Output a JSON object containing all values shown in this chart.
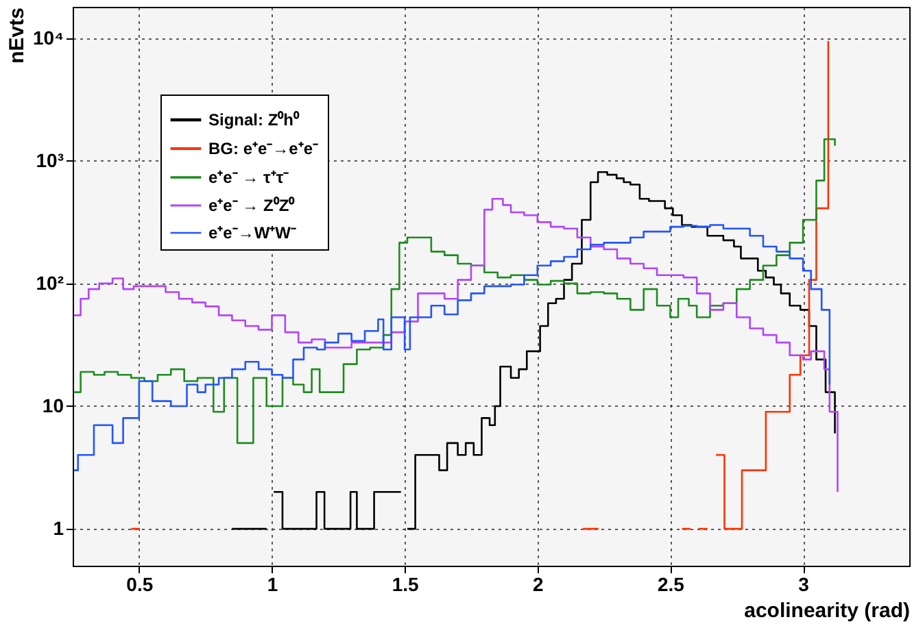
{
  "chart_data": {
    "type": "step",
    "xlabel": "acolinearity (rad)",
    "ylabel": "nEvts",
    "log": true,
    "grid": true,
    "legend": "top left",
    "xlim": [
      0.25,
      3.4
    ],
    "xticks": [
      0.5,
      1,
      1.5,
      2,
      2.5,
      3
    ],
    "ylim": [
      0.5,
      18000
    ],
    "yticks": [
      1,
      10,
      {
        "value": 100,
        "label": "10²"
      },
      {
        "value": 1000,
        "label": "10³"
      },
      {
        "value": 10000,
        "label": "10⁴"
      }
    ],
    "series": [
      {
        "name": "Signal: Z⁰h⁰",
        "color": "#000000",
        "x": [
          0.85,
          0.98,
          1.007,
          1.04,
          1.168,
          1.198,
          1.296,
          1.32,
          1.385,
          1.486,
          1.51,
          1.54,
          1.63,
          1.66,
          1.7,
          1.73,
          1.76,
          1.79,
          1.82,
          1.84,
          1.86,
          1.9,
          1.93,
          1.96,
          2.01,
          2.04,
          2.07,
          2.1,
          2.13,
          2.167,
          2.2,
          2.228,
          2.263,
          2.298,
          2.325,
          2.35,
          2.385,
          2.42,
          2.48,
          2.51,
          2.544,
          2.58,
          2.64,
          2.7,
          2.74,
          2.766,
          2.83,
          2.86,
          2.89,
          2.917,
          2.95,
          2.99,
          3.023,
          3.05,
          3.085,
          3.12
        ],
        "values": [
          1,
          null,
          2,
          1,
          2,
          1,
          2,
          1,
          2,
          null,
          1,
          4,
          3,
          5,
          4,
          5,
          4,
          8,
          7,
          10,
          21,
          17,
          20,
          28,
          45,
          69,
          75,
          107,
          145,
          330,
          670,
          810,
          770,
          720,
          670,
          640,
          490,
          470,
          410,
          360,
          300,
          290,
          245,
          225,
          200,
          160,
          127,
          112,
          98,
          83,
          66,
          61,
          45,
          24,
          13,
          6
        ]
      },
      {
        "name": "BG: e⁺e⁻→e⁺e⁻",
        "color": "#ff3300",
        "x": [
          0.47,
          0.5,
          2.17,
          2.23,
          2.544,
          2.576,
          2.606,
          2.64,
          2.672,
          2.704,
          2.77,
          2.86,
          2.95,
          2.99,
          3.023,
          3.05,
          3.095
        ],
        "values": [
          1,
          null,
          1,
          null,
          1,
          null,
          1,
          null,
          4,
          1,
          3,
          9,
          18,
          26,
          107,
          410,
          9500
        ]
      },
      {
        "name": "e⁺e⁻ → τ⁺τ⁻",
        "color": "#1e8c1e",
        "x": [
          0.255,
          0.28,
          0.33,
          0.37,
          0.42,
          0.47,
          0.52,
          0.57,
          0.62,
          0.67,
          0.72,
          0.78,
          0.82,
          0.87,
          0.93,
          0.98,
          1.04,
          1.08,
          1.12,
          1.15,
          1.18,
          1.27,
          1.32,
          1.37,
          1.42,
          1.45,
          1.48,
          1.51,
          1.55,
          1.6,
          1.65,
          1.7,
          1.75,
          1.8,
          1.85,
          1.9,
          1.95,
          2.0,
          2.05,
          2.1,
          2.15,
          2.2,
          2.25,
          2.3,
          2.35,
          2.4,
          2.45,
          2.5,
          2.53,
          2.57,
          2.6,
          2.65,
          2.7,
          2.75,
          2.8,
          2.85,
          2.9,
          2.95,
          3.0,
          3.05,
          3.08,
          3.12
        ],
        "values": [
          13,
          19,
          18,
          19,
          18,
          17,
          16,
          18,
          20,
          16,
          17,
          9,
          17,
          5,
          17,
          10,
          17,
          15,
          13,
          20,
          13,
          22,
          29,
          30,
          38,
          90,
          215,
          237,
          237,
          182,
          170,
          145,
          140,
          123,
          112,
          117,
          107,
          98,
          105,
          100,
          83,
          85,
          83,
          75,
          61,
          90,
          66,
          53,
          75,
          66,
          53,
          66,
          69,
          90,
          107,
          140,
          170,
          215,
          330,
          690,
          1500,
          1330
        ]
      },
      {
        "name": "e⁺e⁻ → Z⁰Z⁰",
        "color": "#b044ff",
        "x": [
          0.255,
          0.28,
          0.31,
          0.35,
          0.4,
          0.44,
          0.48,
          0.55,
          0.6,
          0.65,
          0.7,
          0.75,
          0.8,
          0.85,
          0.9,
          0.95,
          1.0,
          1.05,
          1.1,
          1.15,
          1.2,
          1.3,
          1.4,
          1.45,
          1.5,
          1.55,
          1.6,
          1.65,
          1.7,
          1.75,
          1.8,
          1.83,
          1.87,
          1.9,
          1.95,
          2.0,
          2.05,
          2.1,
          2.15,
          2.2,
          2.25,
          2.3,
          2.35,
          2.4,
          2.45,
          2.5,
          2.55,
          2.6,
          2.65,
          2.7,
          2.75,
          2.8,
          2.85,
          2.9,
          2.95,
          3.0,
          3.03,
          3.08,
          3.1,
          3.13
        ],
        "values": [
          55,
          75,
          90,
          100,
          110,
          90,
          95,
          95,
          85,
          75,
          70,
          65,
          55,
          50,
          45,
          42,
          55,
          40,
          33,
          35,
          30,
          33,
          33,
          40,
          49,
          83,
          83,
          75,
          107,
          140,
          400,
          490,
          436,
          380,
          360,
          316,
          290,
          280,
          237,
          200,
          190,
          160,
          145,
          133,
          117,
          117,
          112,
          83,
          61,
          69,
          53,
          43,
          38,
          33,
          26,
          24,
          28,
          20,
          9,
          2
        ]
      },
      {
        "name": "e⁺e⁻→W⁺W⁻",
        "color": "#2255ff",
        "x": [
          0.255,
          0.27,
          0.33,
          0.4,
          0.44,
          0.5,
          0.55,
          0.62,
          0.68,
          0.72,
          0.75,
          0.8,
          0.85,
          0.9,
          0.95,
          1.0,
          1.04,
          1.08,
          1.12,
          1.17,
          1.2,
          1.25,
          1.3,
          1.35,
          1.4,
          1.42,
          1.45,
          1.5,
          1.52,
          1.55,
          1.6,
          1.65,
          1.7,
          1.75,
          1.8,
          1.85,
          1.9,
          1.95,
          2.0,
          2.05,
          2.1,
          2.15,
          2.2,
          2.25,
          2.3,
          2.35,
          2.4,
          2.45,
          2.5,
          2.55,
          2.6,
          2.65,
          2.7,
          2.75,
          2.8,
          2.85,
          2.9,
          2.95,
          3.0,
          3.03,
          3.07,
          3.1
        ],
        "values": [
          3,
          4,
          7,
          5,
          8,
          16,
          11,
          10,
          15,
          13,
          15,
          17,
          20,
          23,
          20,
          18,
          17,
          24,
          30,
          29,
          33,
          39,
          34,
          41,
          51,
          29,
          53,
          29,
          53,
          53,
          66,
          56,
          73,
          83,
          95,
          95,
          98,
          117,
          140,
          152,
          165,
          190,
          207,
          215,
          215,
          237,
          265,
          265,
          290,
          295,
          290,
          300,
          280,
          280,
          245,
          200,
          182,
          160,
          127,
          90,
          61,
          15
        ]
      }
    ]
  }
}
